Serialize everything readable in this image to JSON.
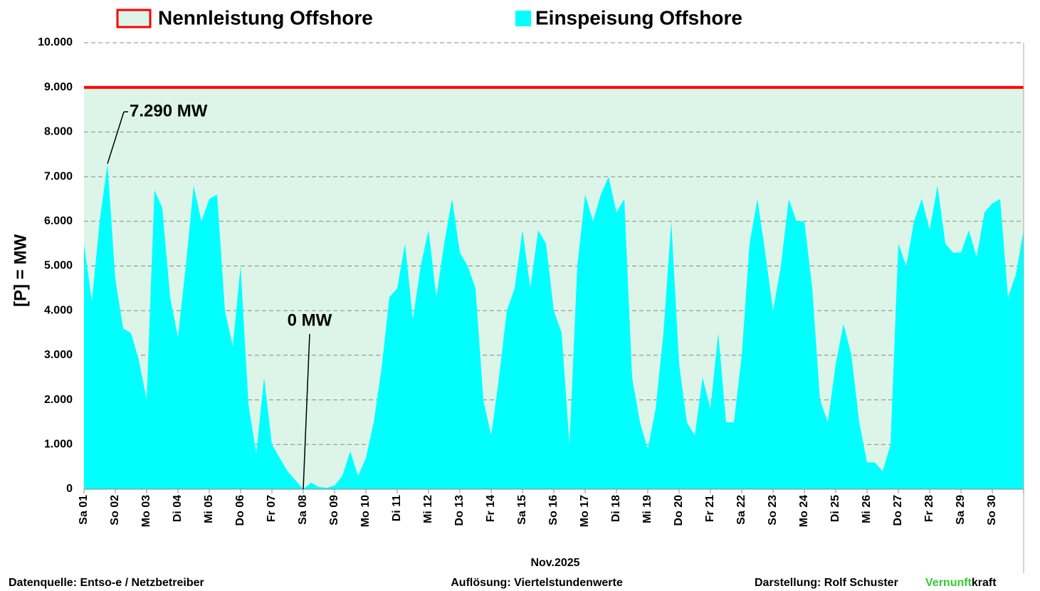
{
  "chart_data": {
    "type": "area",
    "x": [
      0,
      0.25,
      0.5,
      0.75,
      1,
      1.25,
      1.5,
      1.75,
      2,
      2.25,
      2.5,
      2.75,
      3,
      3.25,
      3.5,
      3.75,
      4,
      4.25,
      4.5,
      4.75,
      5,
      5.25,
      5.5,
      5.75,
      6,
      6.25,
      6.5,
      6.75,
      7,
      7.25,
      7.5,
      7.75,
      8,
      8.25,
      8.5,
      8.75,
      9,
      9.25,
      9.5,
      9.75,
      10,
      10.25,
      10.5,
      10.75,
      11,
      11.25,
      11.5,
      11.75,
      12,
      12.25,
      12.5,
      12.75,
      13,
      13.25,
      13.5,
      13.75,
      14,
      14.25,
      14.5,
      14.75,
      15,
      15.25,
      15.5,
      15.75,
      16,
      16.25,
      16.5,
      16.75,
      17,
      17.25,
      17.5,
      17.75,
      18,
      18.25,
      18.5,
      18.75,
      19,
      19.25,
      19.5,
      19.75,
      20,
      20.25,
      20.5,
      20.75,
      21,
      21.25,
      21.5,
      21.75,
      22,
      22.25,
      22.5,
      22.75,
      23,
      23.25,
      23.5,
      23.75,
      24,
      24.25,
      24.5,
      24.75,
      25,
      25.25,
      25.5,
      25.75,
      26,
      26.25,
      26.5,
      26.75,
      27,
      27.25,
      27.5,
      27.75,
      28,
      28.25,
      28.5,
      28.75,
      29,
      29.25,
      29.5,
      29.75,
      30
    ],
    "series": [
      {
        "name": "Einspeisung Offshore",
        "color": "#00ffff",
        "values": [
          5500,
          4200,
          6000,
          7290,
          4700,
          3600,
          3500,
          2900,
          2000,
          6700,
          6300,
          4300,
          3400,
          5000,
          6800,
          6000,
          6500,
          6600,
          4000,
          3200,
          5000,
          1900,
          800,
          2500,
          1000,
          700,
          400,
          200,
          0,
          150,
          50,
          30,
          80,
          300,
          850,
          300,
          700,
          1500,
          2700,
          4300,
          4500,
          5500,
          3800,
          5000,
          5800,
          4300,
          5500,
          6500,
          5300,
          5000,
          4500,
          2000,
          1200,
          2500,
          4000,
          4500,
          5800,
          4500,
          5800,
          5500,
          4000,
          3500,
          1000,
          5000,
          6600,
          6000,
          6600,
          7000,
          6200,
          6500,
          2500,
          1500,
          900,
          1800,
          3500,
          6000,
          2800,
          1500,
          1200,
          2500,
          1800,
          3500,
          1500,
          1500,
          3000,
          5500,
          6500,
          5300,
          4000,
          5000,
          6500,
          6000,
          6000,
          4500,
          2000,
          1500,
          2800,
          3700,
          3000,
          1500,
          600,
          600,
          400,
          1000,
          5500,
          5000,
          6000,
          6500,
          5800,
          6800,
          5500,
          5300,
          5300,
          5800,
          5200,
          6200,
          6400,
          6500,
          4300,
          4800,
          5800
        ]
      }
    ],
    "capacity": {
      "name": "Nennleistung Offshore",
      "color": "#ff0000",
      "fill": "#dcf5e8",
      "value": 9000
    },
    "annotations": [
      {
        "text": "7.290 MW",
        "x": 0.75,
        "y": 7290
      },
      {
        "text": "0 MW",
        "x": 7,
        "y": 0
      }
    ],
    "xlim": [
      0,
      30
    ],
    "xticks": [
      {
        "value": 0,
        "label": "Sa 01"
      },
      {
        "value": 1,
        "label": "So 02"
      },
      {
        "value": 2,
        "label": "Mo 03"
      },
      {
        "value": 3,
        "label": "Di 04"
      },
      {
        "value": 4,
        "label": "Mi 05"
      },
      {
        "value": 5,
        "label": "Do 06"
      },
      {
        "value": 6,
        "label": "Fr 07"
      },
      {
        "value": 7,
        "label": "Sa 08"
      },
      {
        "value": 8,
        "label": "So 09"
      },
      {
        "value": 9,
        "label": "Mo 10"
      },
      {
        "value": 10,
        "label": "Di 11"
      },
      {
        "value": 11,
        "label": "Mi 12"
      },
      {
        "value": 12,
        "label": "Do 13"
      },
      {
        "value": 13,
        "label": "Fr 14"
      },
      {
        "value": 14,
        "label": "Sa 15"
      },
      {
        "value": 15,
        "label": "So 16"
      },
      {
        "value": 16,
        "label": "Mo 17"
      },
      {
        "value": 17,
        "label": "Di 18"
      },
      {
        "value": 18,
        "label": "Mi 19"
      },
      {
        "value": 19,
        "label": "Do 20"
      },
      {
        "value": 20,
        "label": "Fr 21"
      },
      {
        "value": 21,
        "label": "Sa 22"
      },
      {
        "value": 22,
        "label": "So 23"
      },
      {
        "value": 23,
        "label": "Mo 24"
      },
      {
        "value": 24,
        "label": "Di 25"
      },
      {
        "value": 25,
        "label": "Mi 26"
      },
      {
        "value": 26,
        "label": "Do 27"
      },
      {
        "value": 27,
        "label": "Fr 28"
      },
      {
        "value": 28,
        "label": "Sa 29"
      },
      {
        "value": 29,
        "label": "So 30"
      }
    ],
    "ylim": [
      0,
      10000
    ],
    "yticks": [
      0,
      {
        "value": 1000,
        "label": "1.000"
      },
      {
        "value": 2000,
        "label": "2.000"
      },
      {
        "value": 3000,
        "label": "3.000"
      },
      {
        "value": 4000,
        "label": "4.000"
      },
      {
        "value": 5000,
        "label": "5.000"
      },
      {
        "value": 6000,
        "label": "6.000"
      },
      {
        "value": 7000,
        "label": "7.000"
      },
      {
        "value": 8000,
        "label": "8.000"
      },
      {
        "value": 9000,
        "label": "9.000"
      },
      {
        "value": 10000,
        "label": "10.000"
      }
    ],
    "grid": true,
    "xlabel": "Nov.2025",
    "ylabel": "[P] = MW",
    "footer": {
      "source": "Datenquelle:  Entso-e  / Netzbetreiber",
      "resolution": "Auflösung: Viertelstundenwerte",
      "author": "Darstellung:  Rolf Schuster",
      "brand_a": "Vernunft",
      "brand_b": "kraft",
      "brand_color": "#33cc33"
    }
  }
}
